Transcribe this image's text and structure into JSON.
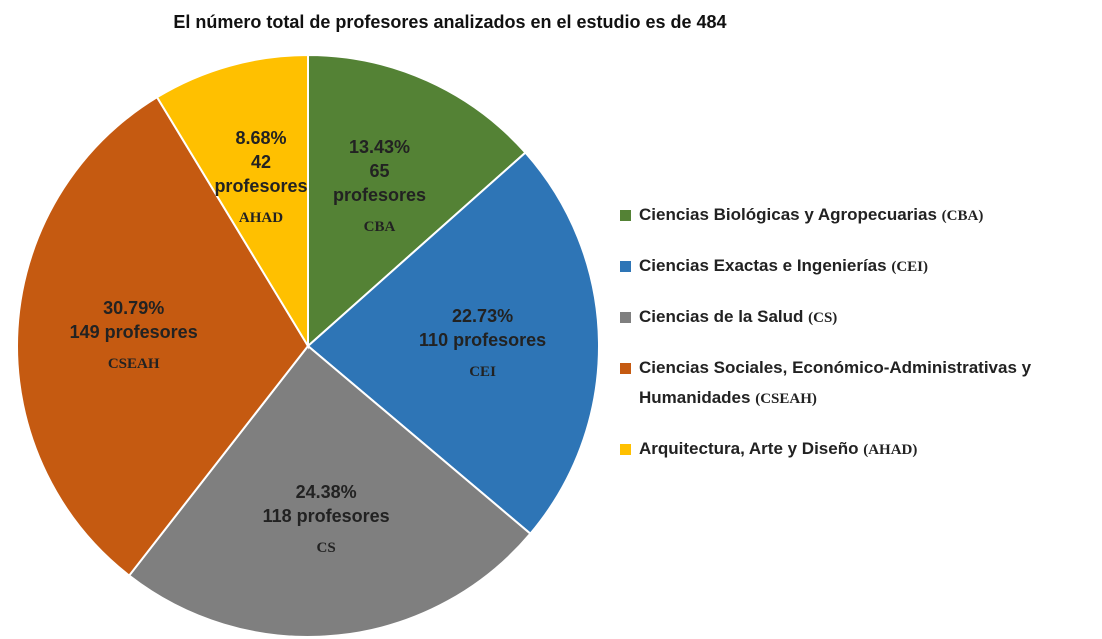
{
  "chart_data": {
    "type": "pie",
    "title": "El número total de profesores analizados en el estudio es de 484",
    "categories": [
      "Ciencias Biológicas y Agropecuarias",
      "Ciencias Exactas e Ingenierías",
      "Ciencias de la Salud",
      "Ciencias Sociales, Económico-Administrativas y Humanidades",
      "Arquitectura, Arte y Diseño"
    ],
    "legend_codes": [
      "(CBA)",
      "(CEI)",
      "(CS)",
      "(CSEAH)",
      "(AHAD)"
    ],
    "values": [
      13.43,
      22.73,
      24.38,
      30.79,
      8.68
    ],
    "value_labels": [
      "13.43%",
      "22.73%",
      "24.38%",
      "30.79%",
      "8.68%"
    ],
    "count_labels": [
      "65 profesores",
      "110 profesores",
      "118 profesores",
      "149 profesores",
      "42 profesores"
    ],
    "abbreviations": [
      "CBA",
      "CEI",
      "CS",
      "CSEAH",
      "AHAD"
    ],
    "colors": [
      "#548235",
      "#2e75b6",
      "#7f7f7f",
      "#c55a11",
      "#ffc000"
    ],
    "legend_position": "right"
  }
}
